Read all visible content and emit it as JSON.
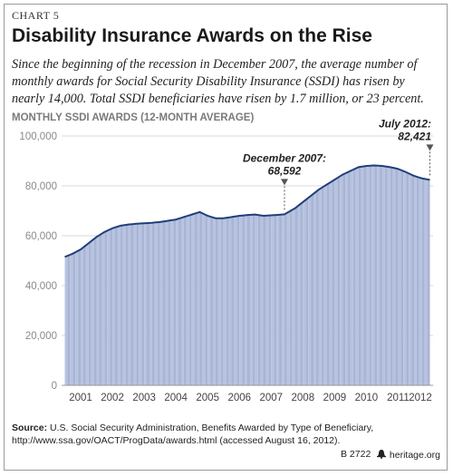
{
  "chart_label": "CHART 5",
  "title": "Disability Insurance Awards on the Rise",
  "subtitle": "Since the beginning of the recession in December 2007, the average number of monthly awards for Social Security Disability Insurance (SSDI) has risen by nearly 14,000. Total  SSDI beneficiaries have risen by 1.7 million, or 23 percent.",
  "source_label": "Source:",
  "source_text": "U.S. Social Security Administration, Benefits Awarded by Type of Beneficiary, http://www.ssa.gov/OACT/ProgData/awards.html (accessed August 16, 2012).",
  "footer_id": "B 2722",
  "footer_logo_icon": "bell-icon",
  "footer_site": "heritage.org",
  "colors": {
    "area_fill": "#b8c3e0",
    "area_fill_alt": "#a9b5d6",
    "line": "#1f3f7a",
    "grid": "#d9d9d9",
    "annotation": "#555555"
  },
  "chart_data": {
    "type": "area",
    "ylabel": "MONTHLY SSDI AWARDS (12-MONTH AVERAGE)",
    "xlabel": "",
    "ylim": [
      0,
      100000
    ],
    "yticks": [
      0,
      20000,
      40000,
      60000,
      80000,
      100000
    ],
    "ytick_labels": [
      "0",
      "20,000",
      "40,000",
      "60,000",
      "80,000",
      "100,000"
    ],
    "x_range_years": [
      2000.9,
      2012.6
    ],
    "xticks": [
      "2001",
      "2002",
      "2003",
      "2004",
      "2005",
      "2006",
      "2007",
      "2008",
      "2009",
      "2010",
      "2011",
      "2012"
    ],
    "grid": true,
    "series": [
      {
        "x": [
          2001.0,
          2001.25,
          2001.5,
          2001.75,
          2002.0,
          2002.25,
          2002.5,
          2002.75,
          2003.0,
          2003.25,
          2003.5,
          2003.75,
          2004.0,
          2004.25,
          2004.5,
          2004.75,
          2005.0,
          2005.25,
          2005.5,
          2005.75,
          2006.0,
          2006.25,
          2006.5,
          2006.75,
          2007.0,
          2007.25,
          2007.5,
          2007.75,
          2007.92,
          2008.25,
          2008.5,
          2008.75,
          2009.0,
          2009.25,
          2009.5,
          2009.75,
          2010.0,
          2010.25,
          2010.5,
          2010.75,
          2011.0,
          2011.25,
          2011.5,
          2011.75,
          2012.0,
          2012.25,
          2012.5
        ],
        "values": [
          51500,
          52800,
          54500,
          57000,
          59500,
          61500,
          63000,
          64000,
          64500,
          64800,
          65000,
          65200,
          65500,
          66000,
          66500,
          67500,
          68500,
          69500,
          68000,
          67000,
          67000,
          67500,
          68000,
          68300,
          68500,
          68000,
          68200,
          68400,
          68592,
          71000,
          73500,
          76000,
          78500,
          80500,
          82500,
          84500,
          86000,
          87500,
          88000,
          88200,
          88000,
          87500,
          86800,
          85500,
          84000,
          83000,
          82421
        ]
      }
    ],
    "annotations": [
      {
        "label": "December 2007:",
        "value_label": "68,592",
        "x": 2007.92,
        "y": 68592
      },
      {
        "label": "July 2012:",
        "value_label": "82,421",
        "x": 2012.5,
        "y": 82421
      }
    ]
  }
}
